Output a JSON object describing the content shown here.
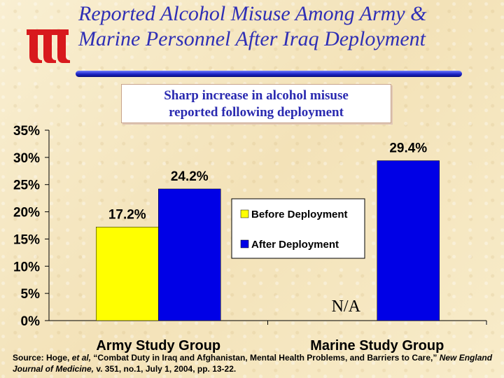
{
  "title": {
    "line1": "Reported Alcohol Misuse Among Army &",
    "line2": "Marine Personnel After Iraq Deployment"
  },
  "callout": {
    "line1": "Sharp increase in alcohol misuse",
    "line2": "reported following deployment"
  },
  "colors": {
    "before": "#ffff00",
    "after": "#0000e6",
    "title": "#2f2fb5"
  },
  "chart_data": {
    "type": "bar",
    "categories": [
      "Army Study Group",
      "Marine Study Group"
    ],
    "series": [
      {
        "name": "Before Deployment",
        "values": [
          17.2,
          null
        ],
        "labels": [
          "17.2%",
          "N/A"
        ]
      },
      {
        "name": "After Deployment",
        "values": [
          24.2,
          29.4
        ],
        "labels": [
          "24.2%",
          "29.4%"
        ]
      }
    ],
    "ylim": [
      0,
      35
    ],
    "yticks": [
      "0%",
      "5%",
      "10%",
      "15%",
      "20%",
      "25%",
      "30%",
      "35%"
    ],
    "legend_position": "center-right",
    "grid": false
  },
  "source": {
    "prefix": "Source: Hoge, ",
    "etal": "et al,",
    "mid": " “Combat Duty in Iraq and Afghanistan, Mental Health Problems, and Barriers to Care,” ",
    "journal": "New England Journal of Medicine,",
    "suffix": " v. 351, no.1, July 1, 2004, pp. 13-22."
  }
}
